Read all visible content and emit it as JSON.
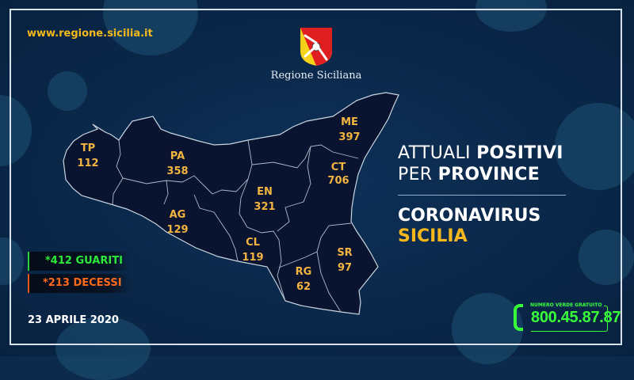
{
  "header": {
    "website": "www.regione.sicilia.it",
    "logo_text": "Regione Siciliana"
  },
  "title": {
    "line1_normal": "ATTUALI ",
    "line1_bold": "POSITIVI",
    "line2_normal": "PER ",
    "line2_bold": "PROVINCE"
  },
  "subtitle": {
    "line1": "CORONAVIRUS",
    "line2": "SICILIA"
  },
  "stats": {
    "recovered": "*412 GUARITI",
    "deaths": "*213 DECESSI"
  },
  "date": "23 APRILE 2020",
  "hotline": {
    "caption": "NUMERO VERDE GRATUITO",
    "number": "800.45.87.87",
    "icon": "phone-icon"
  },
  "provinces": [
    {
      "code": "TP",
      "value": "112"
    },
    {
      "code": "PA",
      "value": "358"
    },
    {
      "code": "AG",
      "value": "129"
    },
    {
      "code": "EN",
      "value": "321"
    },
    {
      "code": "CL",
      "value": "119"
    },
    {
      "code": "ME",
      "value": "397"
    },
    {
      "code": "CT",
      "value": "706"
    },
    {
      "code": "RG",
      "value": "62"
    },
    {
      "code": "SR",
      "value": "97"
    }
  ],
  "colors": {
    "background": "#0b2a4c",
    "map_fill": "#0a1430",
    "label": "#f4b540",
    "accent_yellow": "#f4b81c",
    "recovered": "#2bea3a",
    "deaths": "#ff6a1a",
    "hotline": "#39ff3a"
  }
}
